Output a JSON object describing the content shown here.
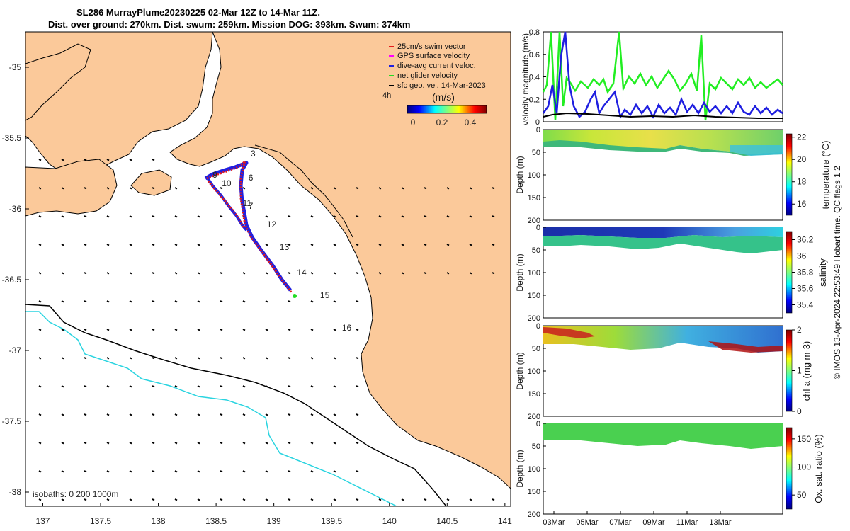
{
  "header": {
    "title_line1": "SL286 MurrayPlume20230225 02-Mar 12Z to 14-Mar 11Z.",
    "title_line2": "Dist. over ground: 270km. Dist. swum: 259km. Mission DOG: 393km. Swum: 374km"
  },
  "chart_data": [
    {
      "type": "map",
      "title": "Glider track with velocity vectors",
      "x_ticks": [
        "137",
        "137.5",
        "138",
        "138.5",
        "139",
        "139.5",
        "140",
        "140.5",
        "141"
      ],
      "y_ticks": [
        "-35",
        "-35.5",
        "-36",
        "-36.5",
        "-37",
        "-37.5",
        "-38"
      ],
      "xlim": [
        136.85,
        141.05
      ],
      "ylim": [
        -38.1,
        -34.75
      ],
      "legend": [
        {
          "label": "25cm/s swim vector",
          "color": "#e41a1c"
        },
        {
          "label": "GPS surface velocity",
          "color": "#ff00ff"
        },
        {
          "label": "dive-avg current veloc.",
          "color": "#1f1fe0"
        },
        {
          "label": "net glider velocity",
          "color": "#22dd22"
        },
        {
          "label": "sfc geo. vel. 14-Mar-2023",
          "color": "#000000"
        }
      ],
      "colorbar": {
        "title": "(m/s)",
        "ticks": [
          "0",
          "0.2",
          "0.4"
        ],
        "prefix": "4h"
      },
      "track_labels": [
        {
          "text": "3",
          "lon": 138.8,
          "lat": -35.63
        },
        {
          "text": "9",
          "lon": 138.47,
          "lat": -35.78
        },
        {
          "text": "6",
          "lon": 138.78,
          "lat": -35.8
        },
        {
          "text": "10",
          "lon": 138.55,
          "lat": -35.84
        },
        {
          "text": "11",
          "lon": 138.73,
          "lat": -35.98
        },
        {
          "text": "7",
          "lon": 138.78,
          "lat": -36.0
        },
        {
          "text": "12",
          "lon": 138.94,
          "lat": -36.13
        },
        {
          "text": "13",
          "lon": 139.05,
          "lat": -36.29
        },
        {
          "text": "14",
          "lon": 139.2,
          "lat": -36.47
        },
        {
          "text": "15",
          "lon": 139.4,
          "lat": -36.63
        },
        {
          "text": "16",
          "lon": 139.59,
          "lat": -36.86
        }
      ],
      "isobath_note": "isobaths: 0  200  1000m"
    },
    {
      "type": "line",
      "ylabel": "velocity magnitude (m/s)",
      "y_ticks": [
        "0",
        "0.2",
        "0.4",
        "0.6",
        "0.8"
      ],
      "ylim": [
        0,
        0.8
      ],
      "x_ticks": [
        "03Mar",
        "05Mar",
        "07Mar",
        "09Mar",
        "11Mar",
        "13Mar"
      ],
      "series": [
        {
          "name": "net glider velocity",
          "color": "#22ee22"
        },
        {
          "name": "dive-avg current veloc.",
          "color": "#1f1fe0"
        },
        {
          "name": "sfc geo. vel.",
          "color": "#000000"
        }
      ]
    },
    {
      "type": "heatmap",
      "ylabel": "Depth (m)",
      "y_ticks": [
        "0",
        "50",
        "100",
        "150",
        "200"
      ],
      "cb_label": "temperature (°C)",
      "cb_ticks": [
        "22",
        "20",
        "18",
        "16"
      ]
    },
    {
      "type": "heatmap",
      "ylabel": "Depth (m)",
      "y_ticks": [
        "0",
        "50",
        "100",
        "150",
        "200"
      ],
      "cb_label": "salinity",
      "cb_ticks": [
        "36.2",
        "36",
        "35.8",
        "35.6",
        "35.4"
      ]
    },
    {
      "type": "heatmap",
      "ylabel": "Depth (m)",
      "y_ticks": [
        "0",
        "50",
        "100",
        "150",
        "200"
      ],
      "cb_label": "chl-a (mg m-3)",
      "cb_ticks": [
        "2",
        "1",
        "0"
      ]
    },
    {
      "type": "heatmap",
      "ylabel": "Depth (m)",
      "y_ticks": [
        "0",
        "50",
        "100",
        "150",
        "200"
      ],
      "cb_label": "Ox. sat. ratio (%)",
      "cb_ticks": [
        "150",
        "100",
        "50"
      ]
    }
  ],
  "footer": {
    "side_note": "© IMOS 13-Apr-2024 22:53:49 Hobart time. QC flags 1  2"
  },
  "colors": {
    "land": "#fbc99a",
    "accent": "#1f1fe0"
  }
}
